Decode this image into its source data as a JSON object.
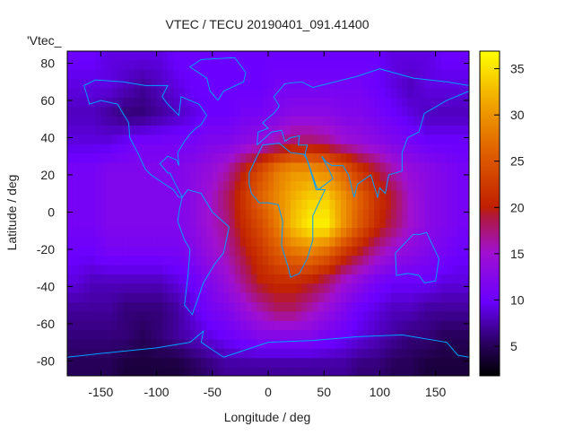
{
  "chart_data": {
    "type": "heatmap",
    "title": "VTEC / TECU 20190401_091.41400",
    "xlabel": "Longitude / deg",
    "ylabel": "Latitude / deg",
    "series_label": "'Vtec_",
    "xlim": [
      -180,
      180
    ],
    "ylim": [
      -88,
      86.5
    ],
    "xticks": [
      "-150",
      "-100",
      "-50",
      "0",
      "50",
      "100",
      "150"
    ],
    "yticks": [
      "-80",
      "-60",
      "-40",
      "-20",
      "0",
      "20",
      "40",
      "60",
      "80"
    ],
    "colorbar": {
      "range": [
        1.8,
        36.9
      ],
      "ticks": [
        "5",
        "10",
        "15",
        "20",
        "25",
        "30",
        "35"
      ],
      "palette": [
        "#000000",
        "#2a0060",
        "#6a00ff",
        "#a010d0",
        "#b01840",
        "#c02000",
        "#e06000",
        "#f0a000",
        "#ffff00"
      ]
    },
    "coastline_color": "#00a0ff",
    "grid": {
      "lon_centers": [
        -172.5,
        -157.5,
        -142.5,
        -127.5,
        -112.5,
        -97.5,
        -82.5,
        -67.5,
        -52.5,
        -37.5,
        -22.5,
        -7.5,
        7.5,
        22.5,
        37.5,
        52.5,
        67.5,
        82.5,
        97.5,
        112.5,
        127.5,
        142.5,
        157.5,
        172.5
      ],
      "lat_centers": [
        82.5,
        67.5,
        52.5,
        37.5,
        22.5,
        7.5,
        -7.5,
        -22.5,
        -37.5,
        -52.5,
        -67.5,
        -82.5
      ],
      "values": [
        [
          10,
          10,
          9,
          9,
          9,
          9,
          10,
          10,
          10,
          10,
          10,
          10,
          10,
          10,
          10,
          10,
          10,
          10,
          10,
          9,
          9,
          9,
          10,
          10
        ],
        [
          9,
          9,
          9,
          8,
          7,
          8,
          9,
          10,
          10,
          10,
          10,
          10,
          11,
          11,
          11,
          11,
          11,
          11,
          10,
          9,
          8,
          9,
          9,
          9
        ],
        [
          8,
          8,
          7,
          6,
          6,
          7,
          8,
          9,
          10,
          10,
          11,
          11,
          12,
          13,
          13,
          13,
          12,
          12,
          11,
          10,
          9,
          8,
          8,
          8
        ],
        [
          9,
          9,
          9,
          10,
          11,
          11,
          11,
          11,
          12,
          12,
          13,
          14,
          16,
          18,
          18,
          17,
          15,
          14,
          13,
          12,
          11,
          10,
          10,
          10
        ],
        [
          11,
          11,
          12,
          12,
          12,
          12,
          12,
          13,
          14,
          16,
          20,
          24,
          28,
          30,
          30,
          29,
          26,
          22,
          19,
          16,
          14,
          13,
          12,
          11
        ],
        [
          11,
          11,
          12,
          12,
          12,
          12,
          12,
          13,
          15,
          18,
          22,
          26,
          29,
          32,
          34,
          34,
          30,
          26,
          22,
          19,
          15,
          13,
          12,
          11
        ],
        [
          11,
          11,
          12,
          12,
          12,
          12,
          12,
          13,
          15,
          17,
          21,
          24,
          28,
          33,
          36,
          36,
          30,
          25,
          21,
          18,
          15,
          13,
          12,
          11
        ],
        [
          10,
          10,
          11,
          11,
          11,
          11,
          11,
          12,
          14,
          16,
          19,
          22,
          25,
          27,
          28,
          26,
          22,
          19,
          16,
          14,
          13,
          12,
          11,
          10
        ],
        [
          9,
          8,
          8,
          8,
          8,
          8,
          9,
          10,
          12,
          14,
          17,
          20,
          21,
          21,
          20,
          18,
          15,
          13,
          11,
          10,
          10,
          10,
          9,
          9
        ],
        [
          7,
          7,
          7,
          6,
          6,
          6,
          7,
          9,
          11,
          12,
          14,
          16,
          18,
          18,
          16,
          14,
          12,
          10,
          9,
          8,
          8,
          7,
          7,
          7
        ],
        [
          6,
          6,
          6,
          6,
          5,
          6,
          7,
          8,
          9,
          10,
          11,
          12,
          12,
          12,
          12,
          11,
          10,
          9,
          8,
          7,
          6,
          6,
          5,
          5
        ],
        [
          5,
          5,
          5,
          4,
          4,
          4,
          4,
          5,
          6,
          7,
          7,
          7,
          7,
          7,
          7,
          7,
          7,
          6,
          6,
          5,
          5,
          4,
          4,
          4
        ]
      ]
    }
  }
}
